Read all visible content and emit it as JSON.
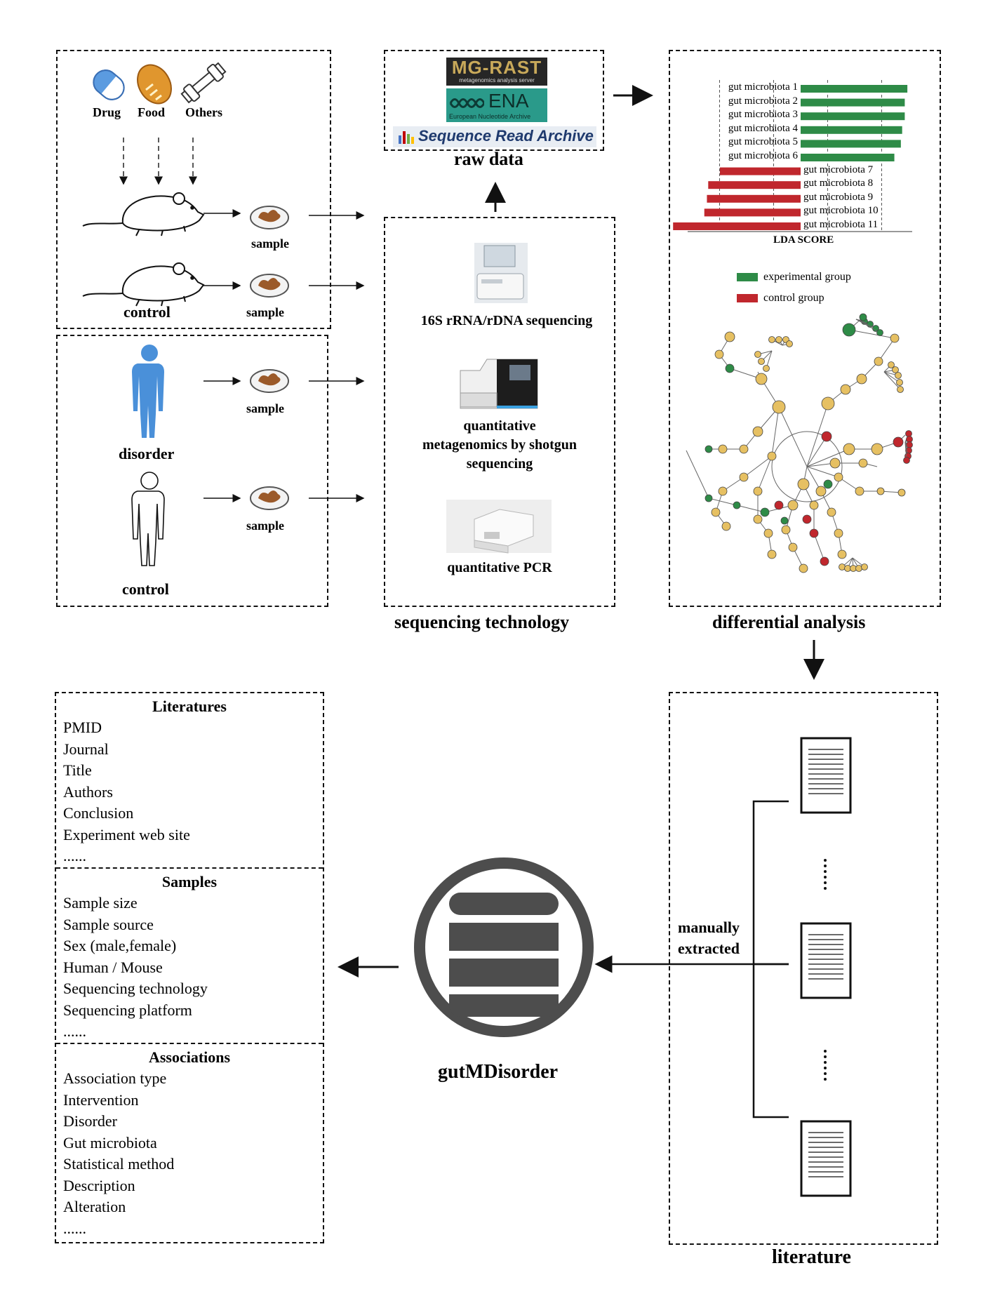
{
  "colors": {
    "experimental": "#2e8b47",
    "control": "#c0272d",
    "node": "#e6c062",
    "drug_blue": "#5b9be0",
    "human_blue": "#4a90d9",
    "sample_brown": "#9b5a2a",
    "db_gray": "#4d4d4d"
  },
  "samples_panel": {
    "factors": [
      {
        "label": "Drug",
        "icon": "pill-icon"
      },
      {
        "label": "Food",
        "icon": "bread-icon"
      },
      {
        "label": "Others",
        "icon": "dumbbell-icon"
      }
    ],
    "mouse_control_label": "control",
    "human_disorder_label": "disorder",
    "human_control_label": "control",
    "sample_label": "sample"
  },
  "raw_data": {
    "title": "raw data",
    "logos": {
      "mgrast": "MG-RAST",
      "mgrast_sub": "metagenomics analysis server",
      "ena": "ENA",
      "ena_sub": "European Nucleotide Archive",
      "sra": "Sequence Read Archive"
    }
  },
  "sequencing": {
    "title": "sequencing technology",
    "methods": [
      "16S rRNA/rDNA sequencing",
      "quantitative",
      "metagenomics by shotgun",
      "sequencing",
      "quantitative PCR"
    ]
  },
  "differential": {
    "title": "differential analysis",
    "axis_label": "LDA SCORE",
    "legend": [
      "experimental group",
      "control group"
    ]
  },
  "chart_data": {
    "type": "bar",
    "title": "",
    "xlabel": "LDA SCORE",
    "ylabel": "",
    "orientation": "horizontal",
    "categories": [
      "gut microbiota 1",
      "gut microbiota 2",
      "gut microbiota 3",
      "gut microbiota 4",
      "gut microbiota 5",
      "gut microbiota 6",
      "gut microbiota 7",
      "gut microbiota 8",
      "gut microbiota 9",
      "gut microbiota 10",
      "gut microbiota 11"
    ],
    "series": [
      {
        "name": "experimental group",
        "values": [
          4.1,
          4.0,
          4.0,
          3.9,
          3.85,
          3.6,
          0,
          0,
          0,
          0,
          0
        ]
      },
      {
        "name": "control group",
        "values": [
          0,
          0,
          0,
          0,
          0,
          0,
          -3.1,
          -3.55,
          -3.6,
          -3.7,
          -4.9
        ]
      }
    ],
    "xlim": [
      -5,
      5
    ]
  },
  "literature": {
    "title": "literature",
    "extract_label_1": "manually",
    "extract_label_2": "extracted",
    "ellipsis": "......"
  },
  "database": {
    "name": "gutMDisorder"
  },
  "fields": {
    "literatures": {
      "title": "Literatures",
      "items": [
        "PMID",
        "Journal",
        "Title",
        "Authors",
        "Conclusion",
        "Experiment web site",
        "......"
      ]
    },
    "samples": {
      "title": "Samples",
      "items": [
        "Sample size",
        "Sample source",
        "Sex (male,female)",
        "Human / Mouse",
        "Sequencing technology",
        "Sequencing platform",
        "......"
      ]
    },
    "associations": {
      "title": "Associations",
      "items": [
        "Association type",
        "Intervention",
        "Disorder",
        "Gut microbiota",
        "Statistical method",
        "Description",
        "Alteration",
        "......"
      ]
    }
  }
}
